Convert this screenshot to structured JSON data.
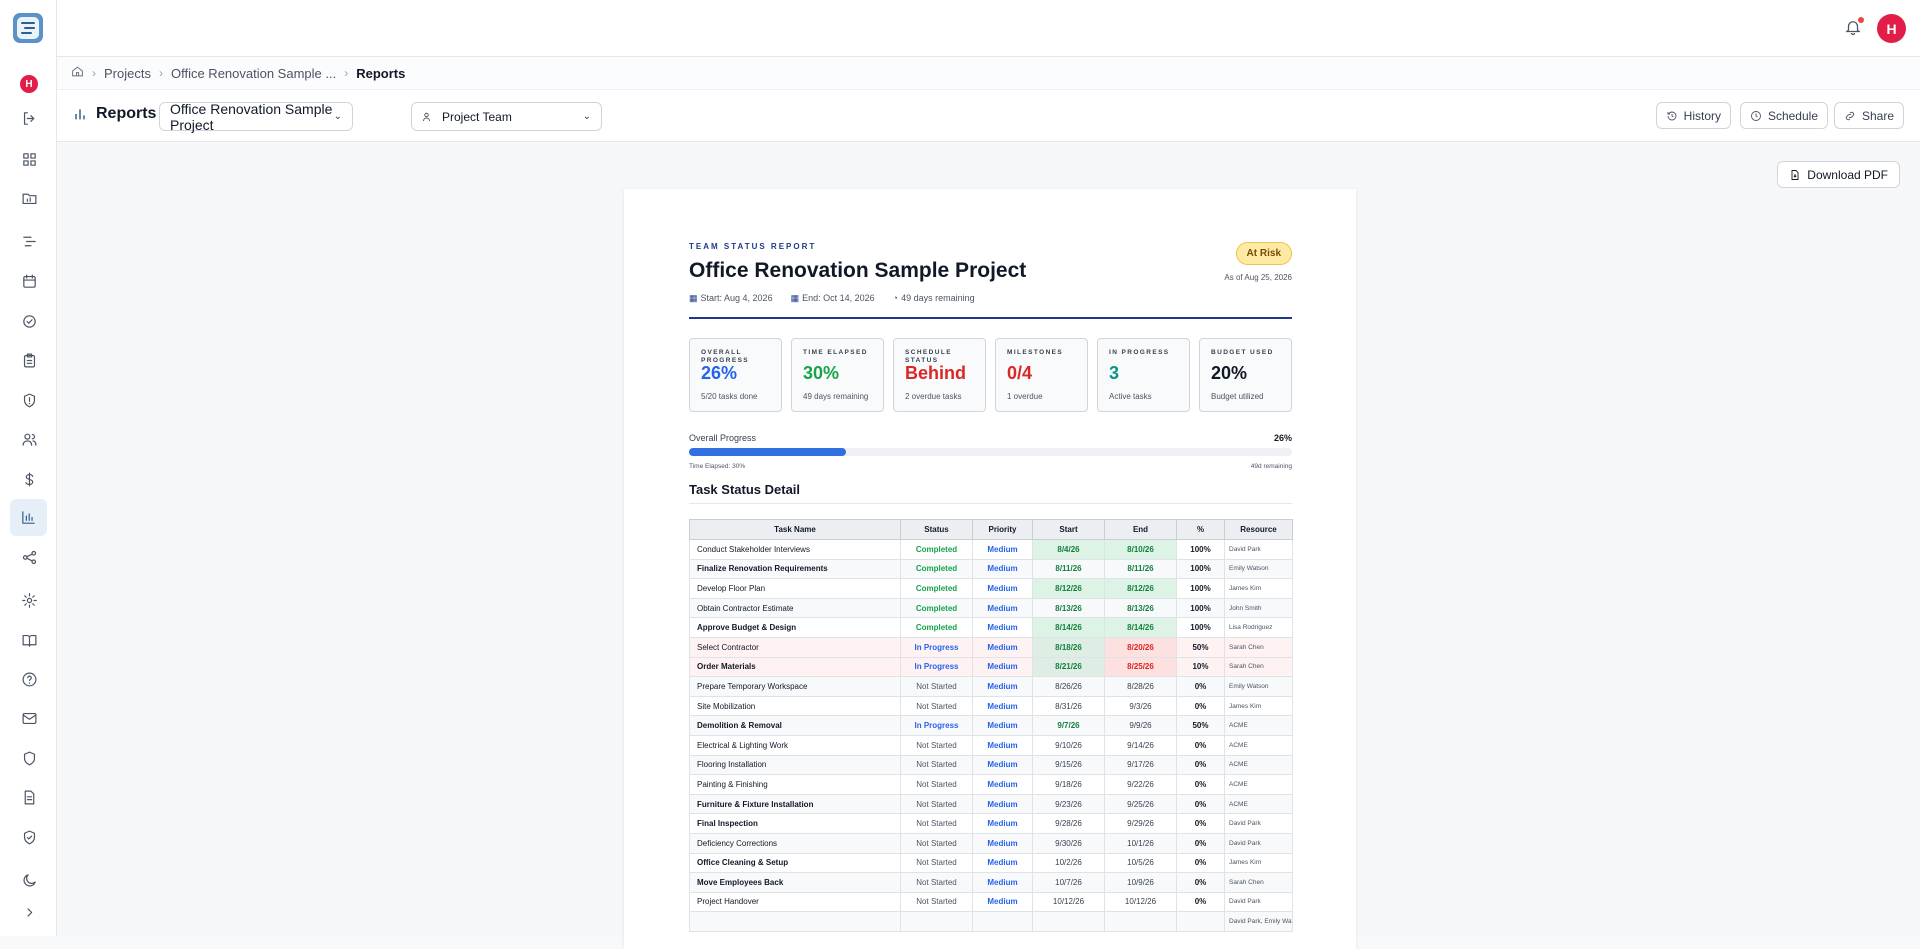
{
  "user_initial": "H",
  "breadcrumb": [
    "Projects",
    "Office Renovation Sample ...",
    "Reports"
  ],
  "toolbar": {
    "title": "Reports",
    "project_select": "Office Renovation Sample Project",
    "team_select": "Project Team",
    "history": "History",
    "schedule": "Schedule",
    "share": "Share"
  },
  "download_pdf": "Download PDF",
  "report": {
    "eyebrow": "TEAM STATUS REPORT",
    "title": "Office Renovation Sample Project",
    "start": "Start: Aug 4, 2026",
    "end": "End: Oct 14, 2026",
    "remaining": "49 days remaining",
    "status_badge": "At Risk",
    "as_of": "As of Aug 25, 2026",
    "cards": [
      {
        "label": "OVERALL PROGRESS",
        "value": "26%",
        "sub": "5/20 tasks done",
        "color": "#2563eb"
      },
      {
        "label": "TIME ELAPSED",
        "value": "30%",
        "sub": "49 days remaining",
        "color": "#16a34a"
      },
      {
        "label": "SCHEDULE STATUS",
        "value": "Behind",
        "sub": "2 overdue tasks",
        "color": "#dc2626"
      },
      {
        "label": "MILESTONES",
        "value": "0/4",
        "sub": "1 overdue",
        "color": "#dc2626"
      },
      {
        "label": "IN PROGRESS",
        "value": "3",
        "sub": "Active tasks",
        "color": "#0d9488"
      },
      {
        "label": "BUDGET USED",
        "value": "20%",
        "sub": "Budget utilized",
        "color": "#111827"
      }
    ],
    "progress_label": "Overall Progress",
    "progress_pct": "26%",
    "progress_value": 0.26,
    "time_elapsed": "Time Elapsed: 30%",
    "days_remaining": "49d remaining",
    "section_title": "Task Status Detail",
    "columns": [
      "Task Name",
      "Status",
      "Priority",
      "Start",
      "End",
      "%",
      "Resource"
    ],
    "tasks": [
      {
        "name": "Conduct Stakeholder Interviews",
        "bold": false,
        "status": "Completed",
        "priority": "Medium",
        "start": "8/4/26",
        "end": "8/10/26",
        "pct": "100%",
        "resource": "David Park"
      },
      {
        "name": "Finalize Renovation Requirements",
        "bold": true,
        "status": "Completed",
        "priority": "Medium",
        "start": "8/11/26",
        "end": "8/11/26",
        "pct": "100%",
        "resource": "Emily Watson"
      },
      {
        "name": "Develop Floor Plan",
        "bold": false,
        "status": "Completed",
        "priority": "Medium",
        "start": "8/12/26",
        "end": "8/12/26",
        "pct": "100%",
        "resource": "James Kim"
      },
      {
        "name": "Obtain Contractor Estimate",
        "bold": false,
        "status": "Completed",
        "priority": "Medium",
        "start": "8/13/26",
        "end": "8/13/26",
        "pct": "100%",
        "resource": "John Smith"
      },
      {
        "name": "Approve Budget & Design",
        "bold": true,
        "status": "Completed",
        "priority": "Medium",
        "start": "8/14/26",
        "end": "8/14/26",
        "pct": "100%",
        "resource": "Lisa Rodriguez"
      },
      {
        "name": "Select Contractor",
        "bold": false,
        "status": "In Progress",
        "priority": "Medium",
        "start": "8/18/26",
        "end": "8/20/26",
        "pct": "50%",
        "resource": "Sarah Chen"
      },
      {
        "name": "Order Materials",
        "bold": true,
        "status": "In Progress",
        "priority": "Medium",
        "start": "8/21/26",
        "end": "8/25/26",
        "pct": "10%",
        "resource": "Sarah Chen"
      },
      {
        "name": "Prepare Temporary Workspace",
        "bold": false,
        "status": "Not Started",
        "priority": "Medium",
        "start": "8/26/26",
        "end": "8/28/26",
        "pct": "0%",
        "resource": "Emily Watson"
      },
      {
        "name": "Site Mobilization",
        "bold": false,
        "status": "Not Started",
        "priority": "Medium",
        "start": "8/31/26",
        "end": "9/3/26",
        "pct": "0%",
        "resource": "James Kim"
      },
      {
        "name": "Demolition & Removal",
        "bold": true,
        "status": "In Progress",
        "priority": "Medium",
        "start": "9/7/26",
        "end": "9/9/26",
        "pct": "50%",
        "resource": "ACME"
      },
      {
        "name": "Electrical & Lighting Work",
        "bold": false,
        "status": "Not Started",
        "priority": "Medium",
        "start": "9/10/26",
        "end": "9/14/26",
        "pct": "0%",
        "resource": "ACME"
      },
      {
        "name": "Flooring Installation",
        "bold": false,
        "status": "Not Started",
        "priority": "Medium",
        "start": "9/15/26",
        "end": "9/17/26",
        "pct": "0%",
        "resource": "ACME"
      },
      {
        "name": "Painting & Finishing",
        "bold": false,
        "status": "Not Started",
        "priority": "Medium",
        "start": "9/18/26",
        "end": "9/22/26",
        "pct": "0%",
        "resource": "ACME"
      },
      {
        "name": "Furniture & Fixture Installation",
        "bold": true,
        "status": "Not Started",
        "priority": "Medium",
        "start": "9/23/26",
        "end": "9/25/26",
        "pct": "0%",
        "resource": "ACME"
      },
      {
        "name": "Final Inspection",
        "bold": true,
        "status": "Not Started",
        "priority": "Medium",
        "start": "9/28/26",
        "end": "9/29/26",
        "pct": "0%",
        "resource": "David Park"
      },
      {
        "name": "Deficiency Corrections",
        "bold": false,
        "status": "Not Started",
        "priority": "Medium",
        "start": "9/30/26",
        "end": "10/1/26",
        "pct": "0%",
        "resource": "David Park"
      },
      {
        "name": "Office Cleaning & Setup",
        "bold": true,
        "status": "Not Started",
        "priority": "Medium",
        "start": "10/2/26",
        "end": "10/5/26",
        "pct": "0%",
        "resource": "James Kim"
      },
      {
        "name": "Move Employees Back",
        "bold": true,
        "status": "Not Started",
        "priority": "Medium",
        "start": "10/7/26",
        "end": "10/9/26",
        "pct": "0%",
        "resource": "Sarah Chen"
      },
      {
        "name": "Project Handover",
        "bold": false,
        "status": "Not Started",
        "priority": "Medium",
        "start": "10/12/26",
        "end": "10/12/26",
        "pct": "0%",
        "resource": "David Park"
      },
      {
        "name": "",
        "bold": false,
        "status": "",
        "priority": "",
        "start": "",
        "end": "",
        "pct": "",
        "resource": "David Park, Emily Watson"
      }
    ]
  }
}
